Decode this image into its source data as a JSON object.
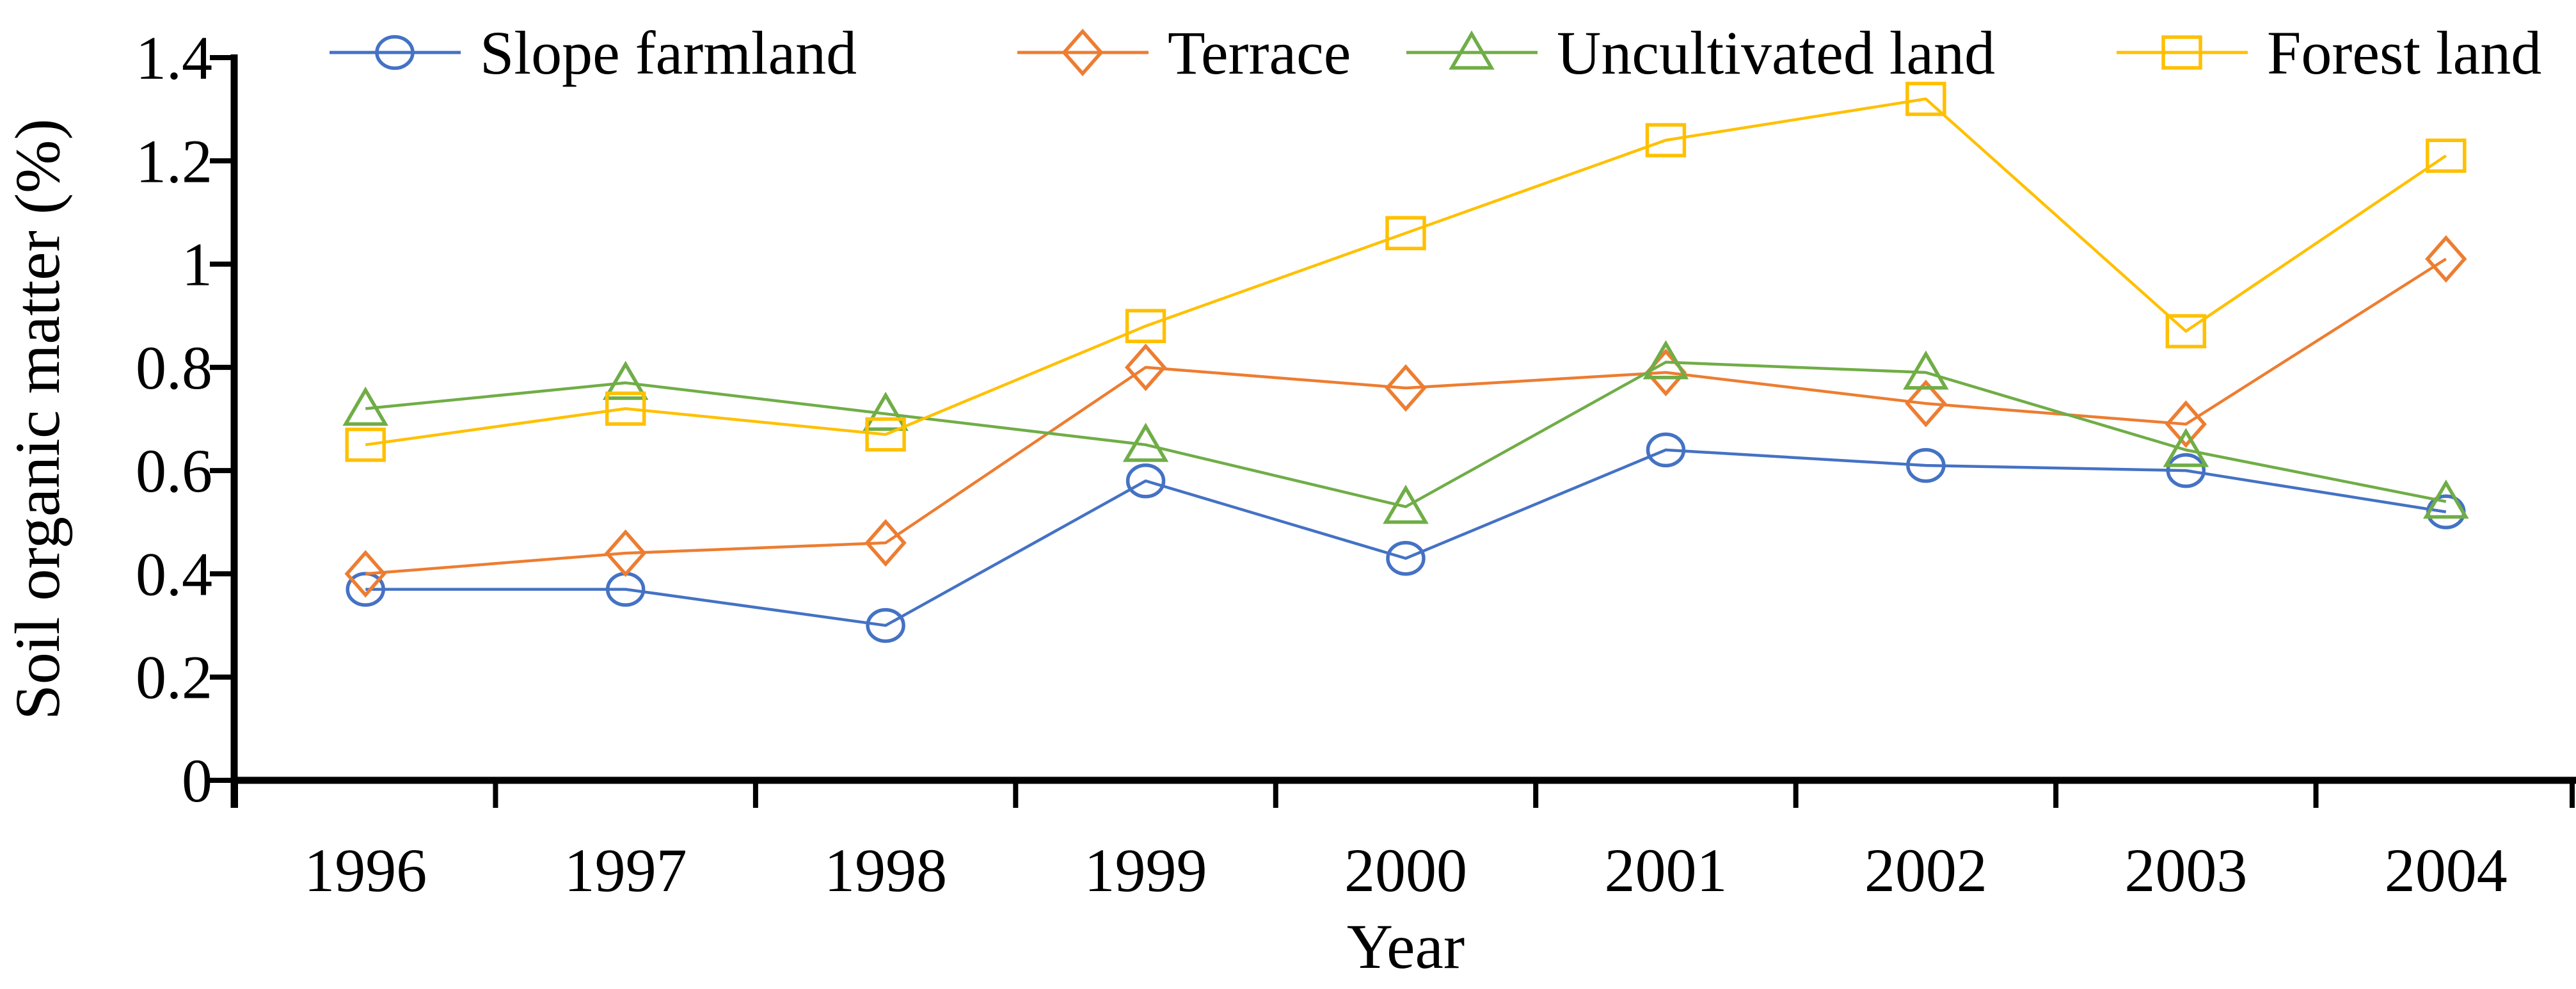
{
  "figure": {
    "background_color": "#ffffff"
  },
  "chart_data": {
    "type": "line",
    "title": "",
    "xlabel": "Year",
    "ylabel": "Soil organic matter (%)",
    "categories": [
      "1996",
      "1997",
      "1998",
      "1999",
      "2000",
      "2001",
      "2002",
      "2003",
      "2004"
    ],
    "y_tick_labels": [
      "0",
      "0.2",
      "0.4",
      "0.6",
      "0.8",
      "1",
      "1.2",
      "1.4"
    ],
    "y_tick_values": [
      0,
      0.2,
      0.4,
      0.6,
      0.8,
      1.0,
      1.2,
      1.4
    ],
    "ylim": [
      0,
      1.4
    ],
    "grid": false,
    "legend_position": "top",
    "axis_color": "#000000",
    "series": [
      {
        "name": "Slope farmland",
        "color": "#4472C4",
        "marker": "circle",
        "values": [
          0.37,
          0.37,
          0.3,
          0.58,
          0.43,
          0.64,
          0.61,
          0.6,
          0.52
        ]
      },
      {
        "name": "Terrace",
        "color": "#ED7D31",
        "marker": "diamond",
        "values": [
          0.4,
          0.44,
          0.46,
          0.8,
          0.76,
          0.79,
          0.73,
          0.69,
          1.01
        ]
      },
      {
        "name": "Uncultivated land",
        "color": "#70AD47",
        "marker": "triangle",
        "values": [
          0.72,
          0.77,
          0.71,
          0.65,
          0.53,
          0.81,
          0.79,
          0.64,
          0.54
        ]
      },
      {
        "name": "Forest land",
        "color": "#FFC000",
        "marker": "square",
        "values": [
          0.65,
          0.72,
          0.67,
          0.88,
          1.06,
          1.24,
          1.32,
          0.87,
          1.21
        ]
      }
    ]
  }
}
